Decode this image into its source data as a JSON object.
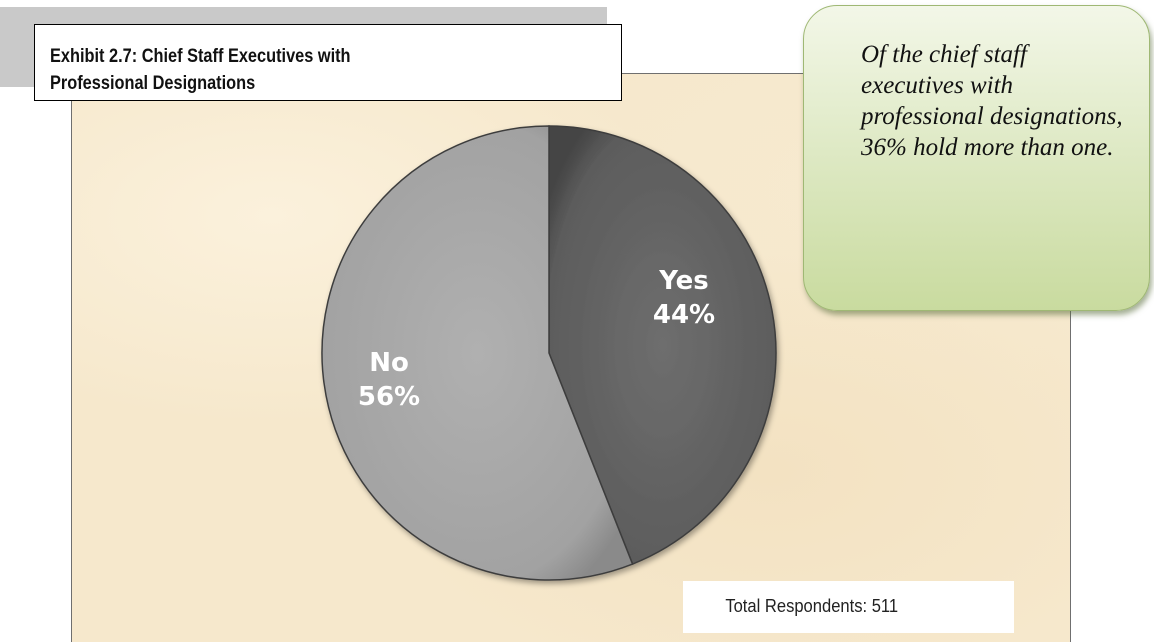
{
  "title": {
    "line1": "Exhibit 2.7: Chief Staff Executives with",
    "line2": "Professional Designations"
  },
  "callout": {
    "text": "Of the chief staff executives with professional designations, 36% hold more than one."
  },
  "footnote": {
    "text": "Total Respondents: 511"
  },
  "colors": {
    "yes_slice": "#5f5f5f",
    "no_slice": "#a3a3a3",
    "background": "#f6e8cc",
    "callout": "#d6e4b6"
  },
  "chart_data": {
    "type": "pie",
    "title": "Exhibit 2.7: Chief Staff Executives with Professional Designations",
    "slices": [
      {
        "label": "Yes",
        "value": 44,
        "value_label": "44%",
        "color": "#5f5f5f"
      },
      {
        "label": "No",
        "value": 56,
        "value_label": "56%",
        "color": "#a3a3a3"
      }
    ],
    "start_angle": "12 o'clock",
    "direction": "clockwise",
    "legend": "none",
    "total_respondents": 511
  }
}
